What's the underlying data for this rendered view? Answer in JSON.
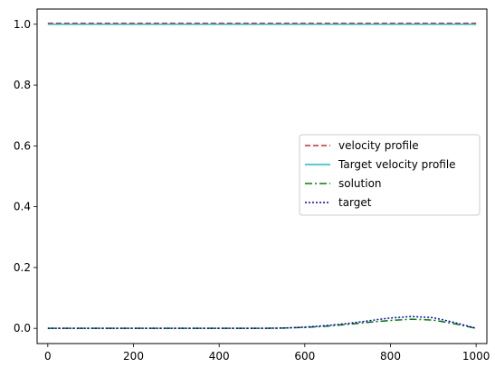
{
  "chart_data": {
    "type": "line",
    "title": "",
    "xlabel": "",
    "ylabel": "",
    "xlim": [
      -25,
      1025
    ],
    "ylim": [
      -0.05,
      1.05
    ],
    "grid": false,
    "legend_position": "center-right",
    "x_ticks": [
      0,
      200,
      400,
      600,
      800,
      1000
    ],
    "x_tick_labels": [
      "0",
      "200",
      "400",
      "600",
      "800",
      "1000"
    ],
    "y_ticks": [
      0.0,
      0.2,
      0.4,
      0.6,
      0.8,
      1.0
    ],
    "y_tick_labels": [
      "0.0",
      "0.2",
      "0.4",
      "0.6",
      "0.8",
      "1.0"
    ],
    "x": [
      0,
      100,
      200,
      300,
      400,
      500,
      550,
      600,
      650,
      700,
      750,
      800,
      850,
      900,
      950,
      1000
    ],
    "series": [
      {
        "name": "velocity profile",
        "color": "#d62728",
        "style": "dashed",
        "values": [
          1.003,
          1.003,
          1.003,
          1.003,
          1.003,
          1.003,
          1.003,
          1.003,
          1.003,
          1.003,
          1.003,
          1.003,
          1.003,
          1.003,
          1.003,
          1.003
        ]
      },
      {
        "name": "Target velocity profile",
        "color": "#17becf",
        "style": "solid",
        "values": [
          1.0,
          1.0,
          1.0,
          1.0,
          1.0,
          1.0,
          1.0,
          1.0,
          1.0,
          1.0,
          1.0,
          1.0,
          1.0,
          1.0,
          1.0,
          1.0
        ]
      },
      {
        "name": "solution",
        "color": "#008000",
        "style": "dashdot",
        "values": [
          0.0,
          0.0,
          0.0,
          0.0,
          0.0,
          0.0,
          0.001,
          0.003,
          0.007,
          0.013,
          0.02,
          0.026,
          0.03,
          0.027,
          0.015,
          0.0
        ]
      },
      {
        "name": "target",
        "color": "#0000cc",
        "style": "dotted",
        "values": [
          0.0,
          0.0,
          0.0,
          0.0,
          0.0,
          0.0,
          0.001,
          0.004,
          0.009,
          0.016,
          0.025,
          0.034,
          0.039,
          0.035,
          0.019,
          0.0
        ]
      }
    ]
  }
}
